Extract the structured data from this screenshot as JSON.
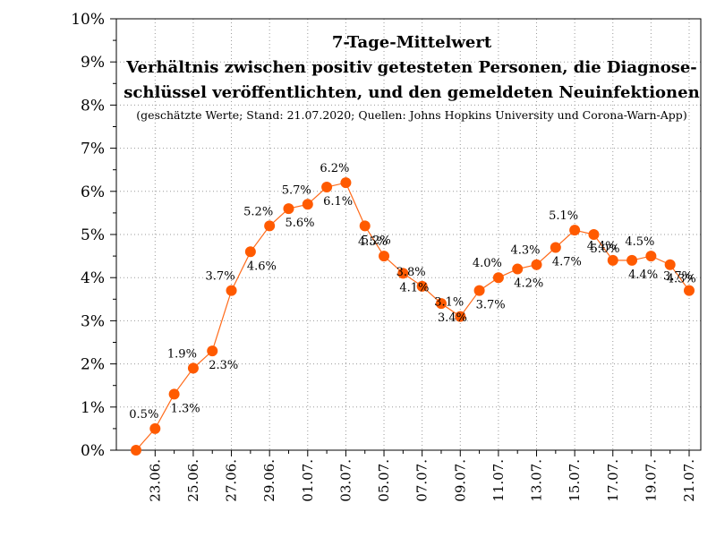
{
  "chart_data": {
    "type": "line",
    "title_lines": [
      "7-Tage-Mittelwert",
      "Verhältnis zwischen positiv getesteten Personen, die Diagnose-",
      "schlüssel veröffentlichten, und den gemeldeten Neuinfektionen"
    ],
    "subtitle": "(geschätzte Werte; Stand: 21.07.2020; Quellen: Johns Hopkins University und Corona-Warn-App)",
    "ylim": [
      0,
      10
    ],
    "y_ticks": [
      "0%",
      "1%",
      "2%",
      "3%",
      "4%",
      "5%",
      "6%",
      "7%",
      "8%",
      "9%",
      "10%"
    ],
    "x_tick_labels": [
      "23.06.",
      "25.06.",
      "27.06.",
      "29.06.",
      "01.07.",
      "03.07.",
      "05.07.",
      "07.07.",
      "09.07.",
      "11.07.",
      "13.07.",
      "15.07.",
      "17.07.",
      "19.07.",
      "21.07."
    ],
    "grid": true,
    "colors": {
      "line": "#ff6a1a",
      "marker": "#ff5a00"
    },
    "series": [
      {
        "values": [
          0.0,
          0.5,
          1.3,
          1.9,
          2.3,
          3.7,
          4.6,
          5.2,
          5.6,
          5.7,
          6.1,
          6.2,
          5.2,
          4.5,
          4.1,
          3.8,
          3.4,
          3.1,
          3.7,
          4.0,
          4.2,
          4.3,
          4.7,
          5.1,
          5.0,
          4.4,
          4.4,
          4.5,
          4.3,
          3.7
        ],
        "data_labels": [
          null,
          "0.5%",
          "1.3%",
          "1.9%",
          "2.3%",
          "3.7%",
          "4.6%",
          "5.2%",
          "5.6%",
          "5.7%",
          "6.1%",
          "6.2%",
          "5.2%",
          "4.5%",
          "4.1%",
          "3.8%",
          "3.4%",
          "3.1%",
          "3.7%",
          "4.0%",
          "4.2%",
          "4.3%",
          "4.7%",
          "5.1%",
          "5.0%",
          "4.4%",
          "4.4%",
          "4.5%",
          "4.3%",
          "3.7%"
        ]
      }
    ]
  }
}
